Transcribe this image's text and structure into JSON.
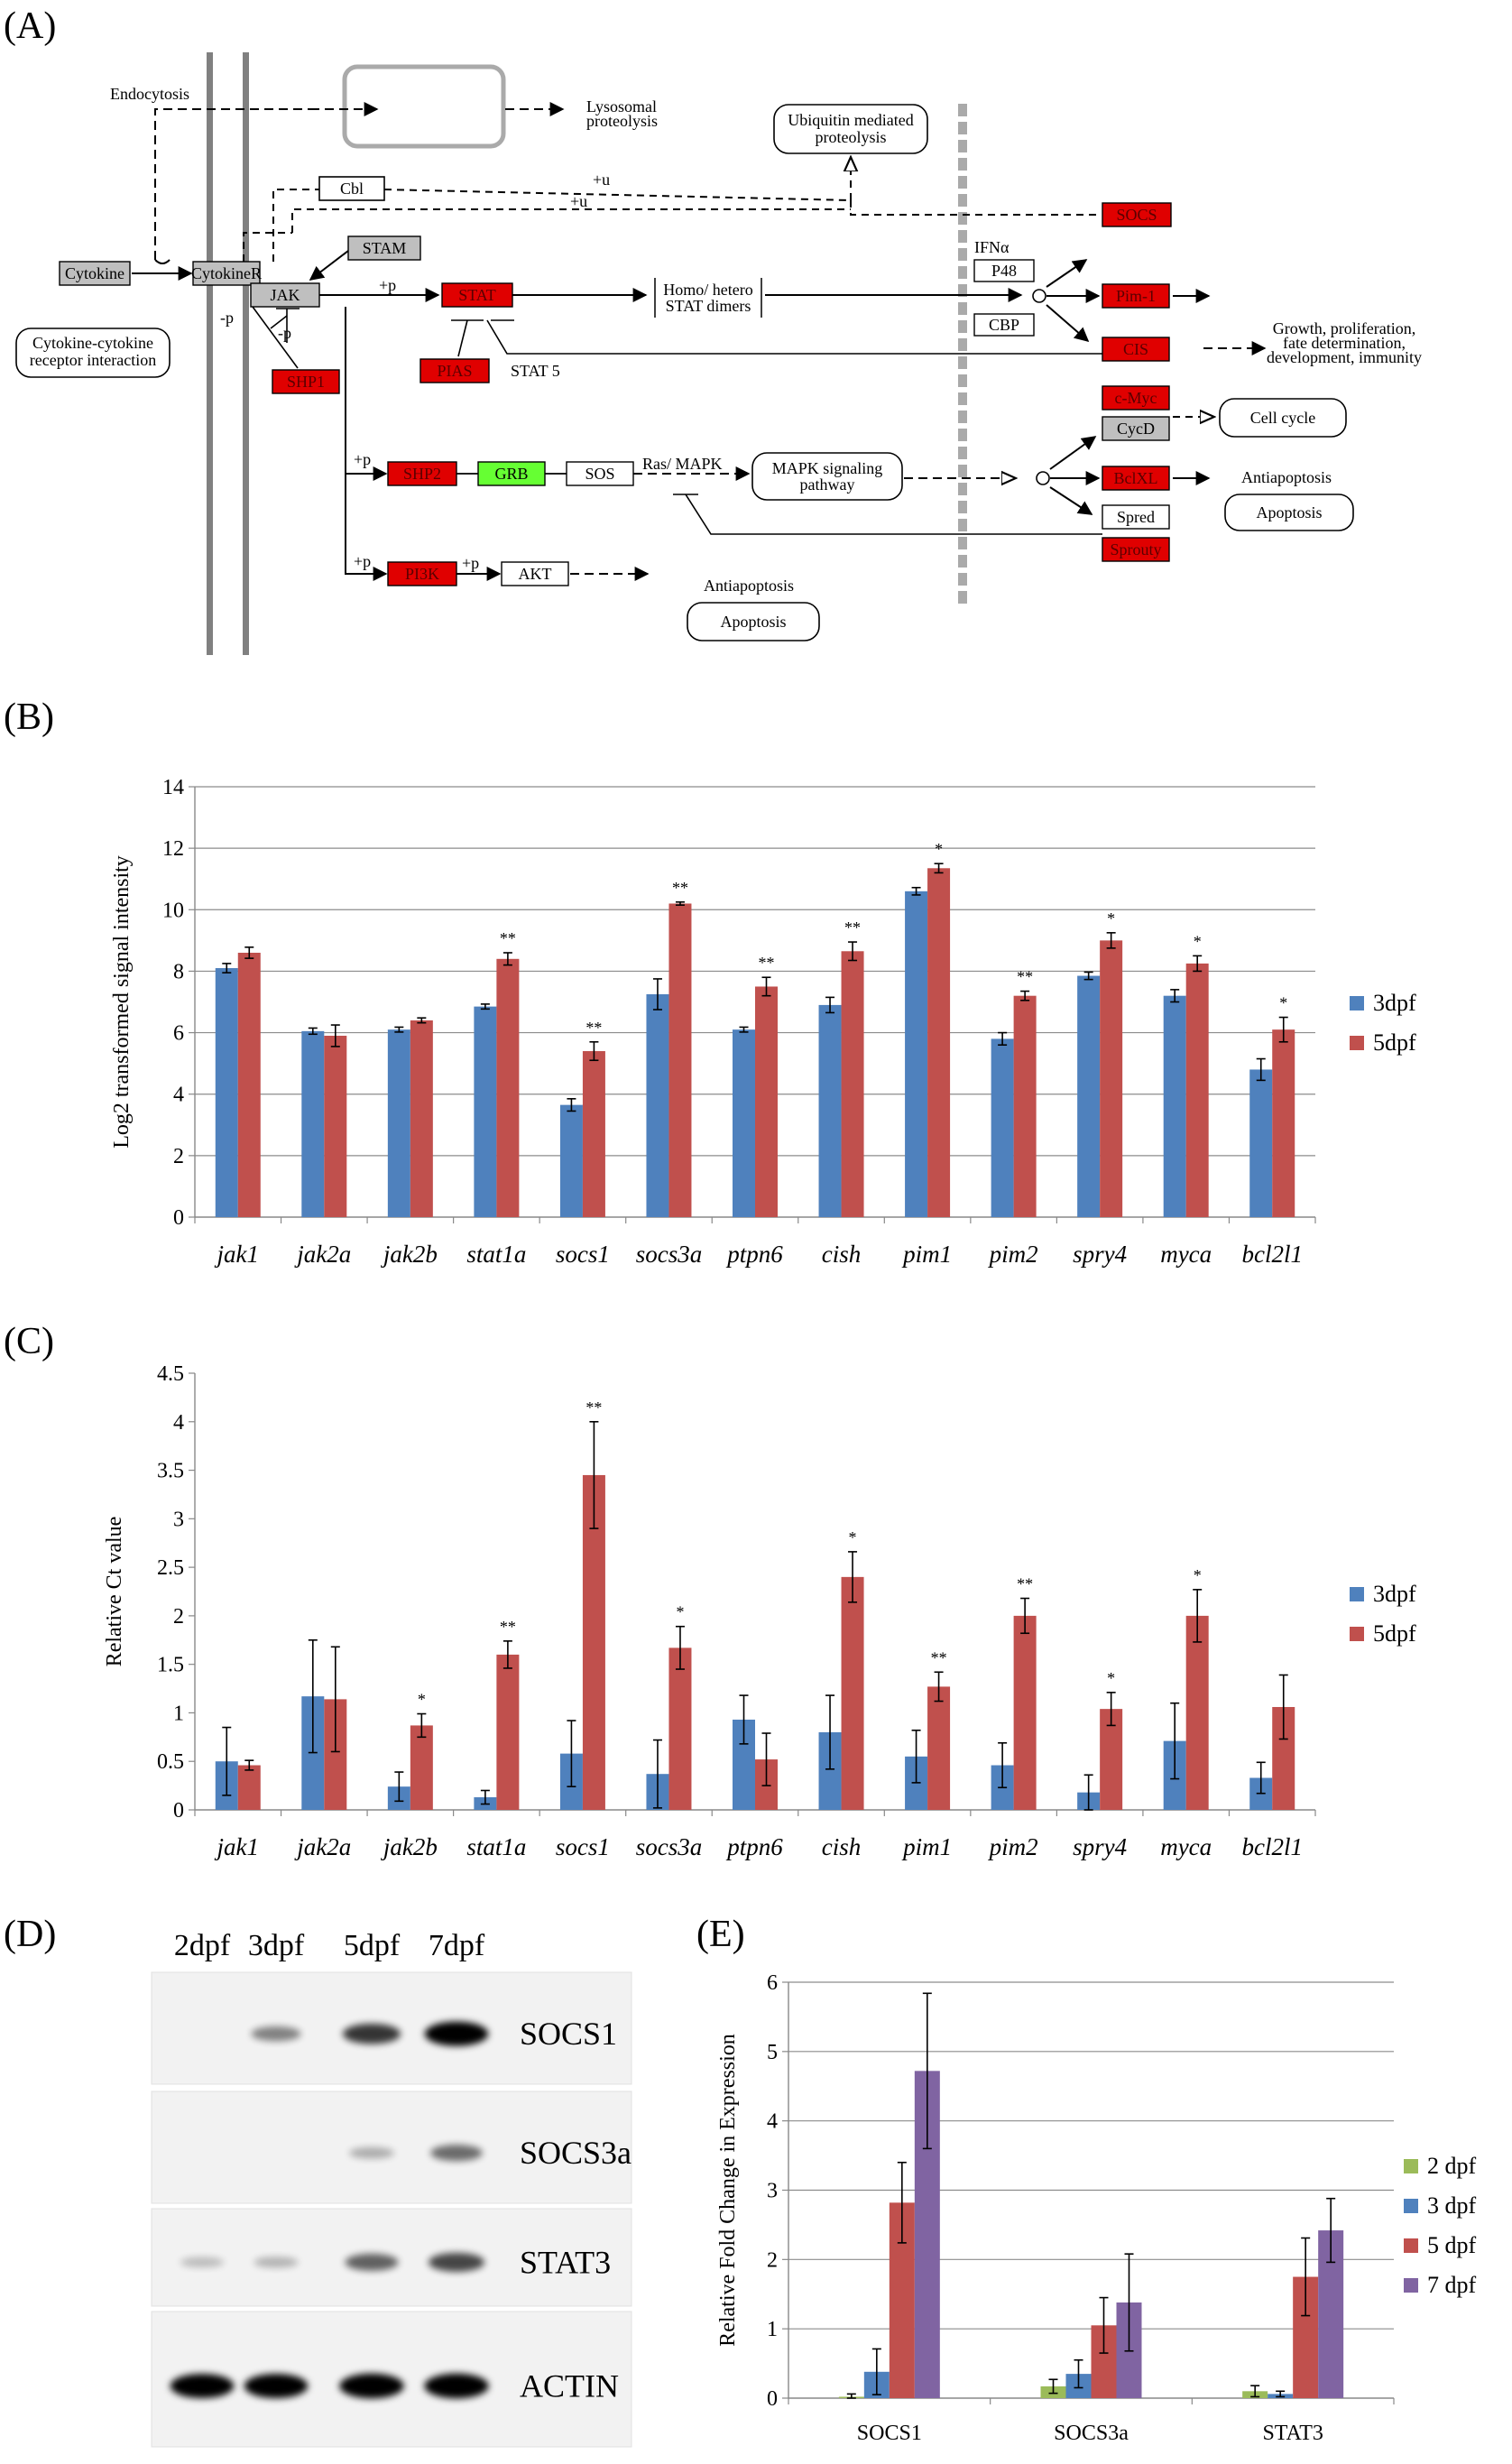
{
  "panels": {
    "A": "(A)",
    "B": "(B)",
    "C": "(C)",
    "D": "(D)",
    "E": "(E)"
  },
  "pathway": {
    "endocytosis": "Endocytosis",
    "lysosomal_1": "Lysosomal",
    "lysosomal_2": "proteolysis",
    "ubiquitin_1": "Ubiquitin mediated",
    "ubiquitin_2": "proteolysis",
    "cbl": "Cbl",
    "plus_u_1": "+u",
    "plus_u_2": "+u",
    "socs": "SOCS",
    "cytokine": "Cytokine",
    "cytokiner": "CytokineR",
    "stam": "STAM",
    "jak": "JAK",
    "plus_p_stat": "+p",
    "stat": "STAT",
    "homo_1": "Homo/ hetero",
    "homo_2": "STAT dimers",
    "ifna": "IFNα",
    "p48": "P48",
    "cbp": "CBP",
    "pim1": "Pim-1",
    "cis": "CIS",
    "growth_1": "Growth, proliferation,",
    "growth_2": "fate determination,",
    "growth_3": "development, immunity",
    "minus_p_1": "-p",
    "minus_p_2": "-p",
    "ccri_1": "Cytokine-cytokine",
    "ccri_2": "receptor interaction",
    "shp1": "SHP1",
    "pias": "PIAS",
    "stat5": "STAT 5",
    "cmyc": "c-Myc",
    "cycd": "CycD",
    "cellcycle": "Cell cycle",
    "plus_p_shp2": "+p",
    "shp2": "SHP2",
    "grb": "GRB",
    "sos": "SOS",
    "rasmapk": "Ras/ MAPK",
    "mapk_1": "MAPK signaling",
    "mapk_2": "pathway",
    "bclxl": "BclXL",
    "antiapop_r": "Antiapoptosis",
    "spred": "Spred",
    "apoptosis_r": "Apoptosis",
    "sprouty": "Sprouty",
    "plus_p_pi3k": "+p",
    "pi3k": "PI3K",
    "plus_p_akt": "+p",
    "akt": "AKT",
    "antiapop_b": "Antiapoptosis",
    "apoptosis_b": "Apoptosis"
  },
  "colors": {
    "blue": "#4F81BD",
    "red": "#C0504D",
    "green": "#9BBB59",
    "purple": "#8064A2",
    "node_red": "#E00000",
    "node_green": "#66FF33",
    "node_gray": "#BFBFBF"
  },
  "chart_data": [
    {
      "panel": "B",
      "type": "bar",
      "title": "",
      "ylabel": "Log2 transformed signal intensity",
      "xlabel": "",
      "ylim": [
        0,
        14
      ],
      "yticks": [
        0,
        2,
        4,
        6,
        8,
        10,
        12,
        14
      ],
      "ytick_labels": [
        "0",
        "2",
        "4",
        "6",
        "8",
        "10",
        "12",
        "14"
      ],
      "categories": [
        "jak1",
        "jak2a",
        "jak2b",
        "stat1a",
        "socs1",
        "socs3a",
        "ptpn6",
        "cish",
        "pim1",
        "pim2",
        "spry4",
        "myca",
        "bcl2l1"
      ],
      "series": [
        {
          "name": "3dpf",
          "values": [
            8.1,
            6.05,
            6.1,
            6.85,
            3.65,
            7.25,
            6.1,
            6.9,
            10.6,
            5.8,
            7.85,
            7.2,
            4.8
          ],
          "errors": [
            0.15,
            0.1,
            0.08,
            0.08,
            0.2,
            0.5,
            0.08,
            0.25,
            0.12,
            0.2,
            0.12,
            0.2,
            0.35
          ]
        },
        {
          "name": "5dpf",
          "values": [
            8.6,
            5.9,
            6.4,
            8.4,
            5.4,
            10.2,
            7.5,
            8.65,
            11.35,
            7.2,
            9.0,
            8.25,
            6.1
          ],
          "errors": [
            0.18,
            0.35,
            0.08,
            0.2,
            0.3,
            0.05,
            0.3,
            0.3,
            0.15,
            0.15,
            0.25,
            0.25,
            0.4
          ]
        }
      ],
      "significance": [
        "",
        "",
        "",
        "**",
        "**",
        "**",
        "**",
        "**",
        "*",
        "**",
        "*",
        "*",
        "*"
      ],
      "legend": "right"
    },
    {
      "panel": "C",
      "type": "bar",
      "title": "",
      "ylabel": "Relative Ct value",
      "xlabel": "",
      "ylim": [
        0,
        4.5
      ],
      "yticks": [
        0,
        0.5,
        1,
        1.5,
        2,
        2.5,
        3,
        3.5,
        4,
        4.5
      ],
      "ytick_labels": [
        "0",
        "0.5",
        "1",
        "1.5",
        "2",
        "2.5",
        "3",
        "3.5",
        "4",
        "4.5"
      ],
      "categories": [
        "jak1",
        "jak2a",
        "jak2b",
        "stat1a",
        "socs1",
        "socs3a",
        "ptpn6",
        "cish",
        "pim1",
        "pim2",
        "spry4",
        "myca",
        "bcl2l1"
      ],
      "series": [
        {
          "name": "3dpf",
          "values": [
            0.5,
            1.17,
            0.24,
            0.13,
            0.58,
            0.37,
            0.93,
            0.8,
            0.55,
            0.46,
            0.18,
            0.71,
            0.33
          ],
          "errors": [
            0.35,
            0.58,
            0.15,
            0.07,
            0.34,
            0.35,
            0.25,
            0.38,
            0.27,
            0.23,
            0.18,
            0.39,
            0.16
          ]
        },
        {
          "name": "5dpf",
          "values": [
            0.46,
            1.14,
            0.87,
            1.6,
            3.45,
            1.67,
            0.52,
            2.4,
            1.27,
            2.0,
            1.04,
            2.0,
            1.06
          ],
          "errors": [
            0.05,
            0.54,
            0.12,
            0.14,
            0.55,
            0.22,
            0.27,
            0.26,
            0.15,
            0.18,
            0.17,
            0.27,
            0.33
          ]
        }
      ],
      "significance": [
        "",
        "",
        "*",
        "**",
        "**",
        "*",
        "",
        "*",
        "**",
        "**",
        "*",
        "*",
        ""
      ],
      "legend": "right"
    },
    {
      "panel": "E",
      "type": "bar",
      "title": "",
      "ylabel": "Relative Fold Change in Expression",
      "xlabel": "",
      "ylim": [
        0,
        6
      ],
      "yticks": [
        0,
        1,
        2,
        3,
        4,
        5,
        6
      ],
      "ytick_labels": [
        "0",
        "1",
        "2",
        "3",
        "4",
        "5",
        "6"
      ],
      "categories": [
        "SOCS1",
        "SOCS3a",
        "STAT3"
      ],
      "series": [
        {
          "name": "2 dpf",
          "values": [
            0.02,
            0.17,
            0.1
          ],
          "errors": [
            0.04,
            0.1,
            0.08
          ]
        },
        {
          "name": "3 dpf",
          "values": [
            0.38,
            0.35,
            0.06
          ],
          "errors": [
            0.33,
            0.2,
            0.04
          ]
        },
        {
          "name": "5 dpf",
          "values": [
            2.82,
            1.05,
            1.75
          ],
          "errors": [
            0.58,
            0.4,
            0.56
          ]
        },
        {
          "name": "7 dpf",
          "values": [
            4.72,
            1.38,
            2.42
          ],
          "errors": [
            1.12,
            0.7,
            0.46
          ]
        }
      ],
      "legend": "right"
    }
  ],
  "blot": {
    "lanes": [
      "2dpf",
      "3dpf",
      "5dpf",
      "7dpf"
    ],
    "rows": [
      {
        "name": "SOCS1",
        "intensities": [
          0.0,
          0.35,
          0.7,
          0.95
        ]
      },
      {
        "name": "SOCS3a",
        "intensities": [
          0.0,
          0.0,
          0.15,
          0.45
        ]
      },
      {
        "name": "STAT3",
        "intensities": [
          0.08,
          0.12,
          0.5,
          0.62
        ]
      },
      {
        "name": "ACTIN",
        "intensities": [
          0.95,
          0.95,
          0.98,
          0.98
        ]
      }
    ]
  }
}
